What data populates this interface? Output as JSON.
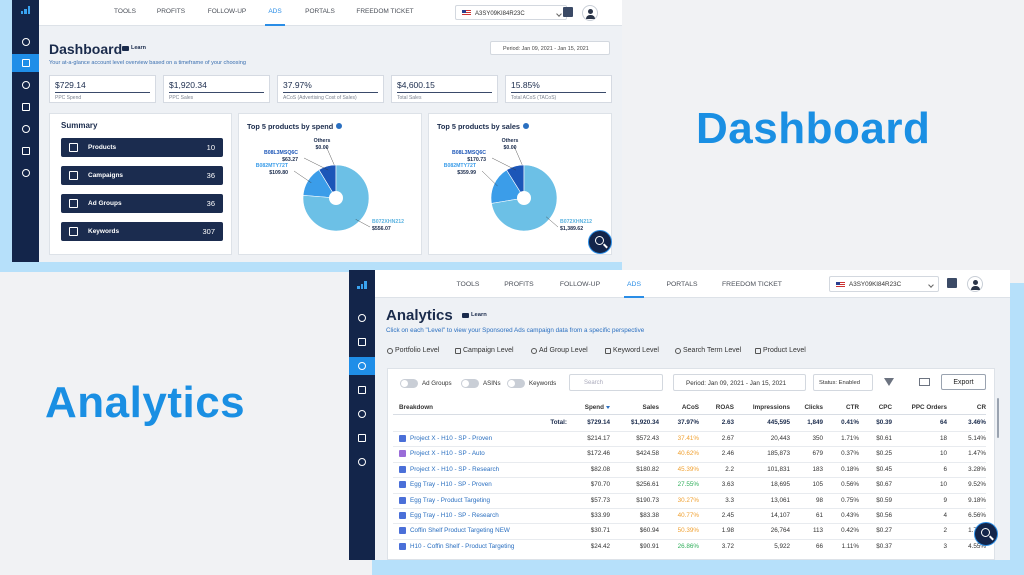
{
  "headings": {
    "dashboard": "Dashboard",
    "analytics": "Analytics"
  },
  "dashboard": {
    "nav": [
      "TOOLS",
      "PROFITS",
      "FOLLOW-UP",
      "ADS",
      "PORTALS",
      "FREEDOM TICKET"
    ],
    "account": "A3SY09KI84R23C",
    "title": "Dashboard",
    "learn": "Learn",
    "subtitle": "Your at-a-glance account level overview based on a timeframe of your choosing",
    "period": "Period: Jan 09, 2021 - Jan 15, 2021",
    "kpis": [
      {
        "value": "$729.14",
        "label": "PPC Spend"
      },
      {
        "value": "$1,920.34",
        "label": "PPC Sales"
      },
      {
        "value": "37.97%",
        "label": "ACoS (Advertising Cost of Sales)"
      },
      {
        "value": "$4,600.15",
        "label": "Total Sales"
      },
      {
        "value": "15.85%",
        "label": "Total ACoS (TACoS)"
      }
    ],
    "summary": {
      "title": "Summary",
      "items": [
        {
          "label": "Products",
          "value": 10
        },
        {
          "label": "Campaigns",
          "value": 36
        },
        {
          "label": "Ad Groups",
          "value": 36
        },
        {
          "label": "Keywords",
          "value": 307
        }
      ]
    },
    "charts": [
      {
        "type": "pie",
        "title": "Top 5 products by spend",
        "labels": [
          "Others",
          "B08L3MSQ6C",
          "B082MTY72T",
          "B072XHN212"
        ],
        "values": [
          0,
          63.27,
          109.8,
          556.07
        ],
        "value_labels": [
          "$0.00",
          "$63.27",
          "$109.80",
          "$556.07"
        ],
        "colors": [
          "#0e3b8a",
          "#1c56b8",
          "#3b9de9",
          "#6cc0e6"
        ]
      },
      {
        "type": "pie",
        "title": "Top 5 products by sales",
        "labels": [
          "Others",
          "B08L3MSQ6C",
          "B082MTY72T",
          "B072XHN212"
        ],
        "values": [
          0,
          170.73,
          359.99,
          1389.62
        ],
        "value_labels": [
          "$0.00",
          "$170.73",
          "$359.99",
          "$1,389.62"
        ],
        "colors": [
          "#0e3b8a",
          "#1c56b8",
          "#3b9de9",
          "#6cc0e6"
        ]
      }
    ]
  },
  "analytics": {
    "nav": [
      "TOOLS",
      "PROFITS",
      "FOLLOW-UP",
      "ADS",
      "PORTALS",
      "FREEDOM TICKET"
    ],
    "account": "A3SY09KI84R23C",
    "title": "Analytics",
    "learn": "Learn",
    "subtitle": "Click on each \"Level\" to view your Sponsored Ads campaign data from a specific perspective",
    "tabs": [
      "Portfolio Level",
      "Campaign Level",
      "Ad Group Level",
      "Keyword Level",
      "Search Term Level",
      "Product Level"
    ],
    "toggles": [
      "Ad Groups",
      "ASINs",
      "Keywords"
    ],
    "search": "Search",
    "period": "Period: Jan 09, 2021 - Jan 15, 2021",
    "status": "Status: Enabled",
    "export": "Export",
    "table": {
      "columns": [
        "Breakdown",
        "Spend",
        "Sales",
        "ACoS",
        "ROAS",
        "Impressions",
        "Clicks",
        "CTR",
        "CPC",
        "PPC Orders",
        "CR"
      ],
      "total": [
        "Total:",
        "$729.14",
        "$1,920.34",
        "37.97%",
        "2.63",
        "445,595",
        "1,849",
        "0.41%",
        "$0.39",
        "64",
        "3.46%"
      ],
      "rows": [
        [
          "Project X - H10 - SP - Proven",
          "$214.17",
          "$572.43",
          "37.41%",
          "2.67",
          "20,443",
          "350",
          "1.71%",
          "$0.61",
          "18",
          "5.14%"
        ],
        [
          "Project X - H10 - SP - Auto",
          "$172.46",
          "$424.58",
          "40.62%",
          "2.46",
          "185,873",
          "679",
          "0.37%",
          "$0.25",
          "10",
          "1.47%"
        ],
        [
          "Project X - H10 - SP - Research",
          "$82.08",
          "$180.82",
          "45.39%",
          "2.2",
          "101,831",
          "183",
          "0.18%",
          "$0.45",
          "6",
          "3.28%"
        ],
        [
          "Egg Tray - H10 - SP - Proven",
          "$70.70",
          "$256.61",
          "27.55%",
          "3.63",
          "18,695",
          "105",
          "0.56%",
          "$0.67",
          "10",
          "9.52%"
        ],
        [
          "Egg Tray - Product Targeting",
          "$57.73",
          "$190.73",
          "30.27%",
          "3.3",
          "13,061",
          "98",
          "0.75%",
          "$0.59",
          "9",
          "9.18%"
        ],
        [
          "Egg Tray - H10 - SP - Research",
          "$33.99",
          "$83.38",
          "40.77%",
          "2.45",
          "14,107",
          "61",
          "0.43%",
          "$0.56",
          "4",
          "6.56%"
        ],
        [
          "Coffin Shelf Product Targeting NEW",
          "$30.71",
          "$60.94",
          "50.39%",
          "1.98",
          "26,764",
          "113",
          "0.42%",
          "$0.27",
          "2",
          "1.77%"
        ],
        [
          "H10 - Coffin Shelf - Product Targeting",
          "$24.42",
          "$90.91",
          "26.86%",
          "3.72",
          "5,922",
          "66",
          "1.11%",
          "$0.37",
          "3",
          "4.55%"
        ]
      ]
    }
  }
}
